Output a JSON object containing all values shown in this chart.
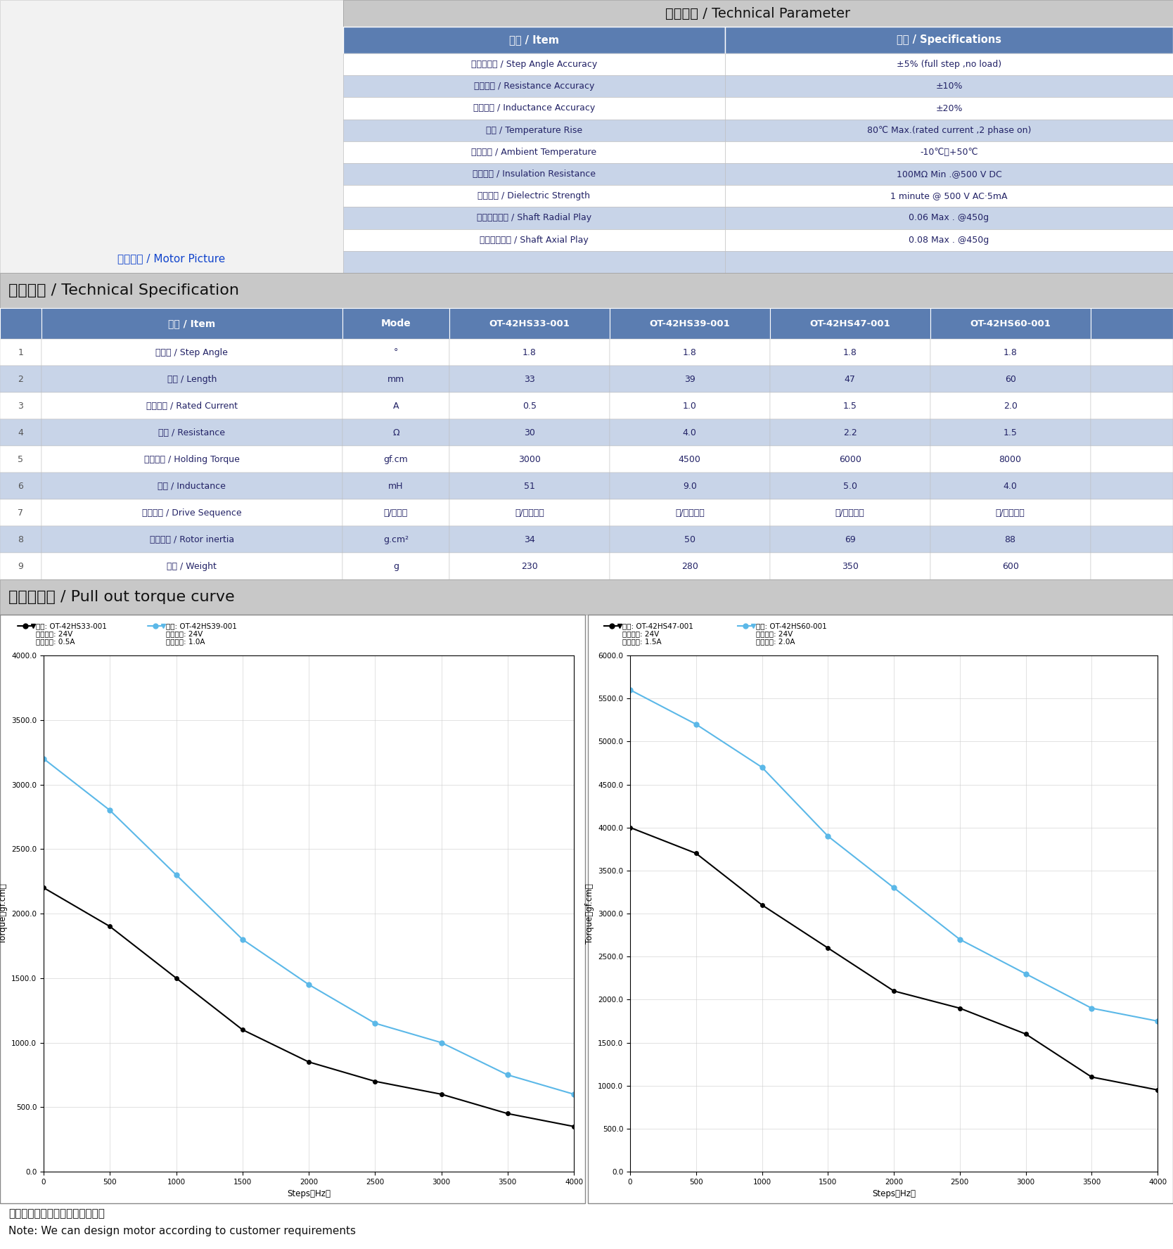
{
  "title_top": "技术参数 / Technical Parameter",
  "tech_param_headers": [
    "项目 / Item",
    "规格 / Specifications"
  ],
  "tech_param_rows": [
    [
      "步距角精度 / Step Angle Accuracy",
      "±5% (full step ,no load)"
    ],
    [
      "电阻精度 / Resistance Accuracy",
      "±10%"
    ],
    [
      "电感精度 / Inductance Accuracy",
      "±20%"
    ],
    [
      "温升 / Temperature Rise",
      "80℃ Max.(rated current ,2 phase on)"
    ],
    [
      "环境温度 / Ambient Temperature",
      "-10℃～+50℃"
    ],
    [
      "绝缘电阻 / Insulation Resistance",
      "100MΩ Min .@500 V DC"
    ],
    [
      "耐压强度 / Dielectric Strength",
      "1 minute @ 500 V AC·5mA"
    ],
    [
      "转轴径向跳动 / Shaft Radial Play",
      "0.06 Max . @450g"
    ],
    [
      "转轴轴向跳动 / Shaft Axial Play",
      "0.08 Max . @450g"
    ],
    [
      "",
      ""
    ]
  ],
  "motor_picture_label": "电机图片 / Motor Picture",
  "tech_spec_title": "技术规格 / Technical Specification",
  "spec_headers": [
    "项目 / Item",
    "Mode",
    "OT-42HS33-001",
    "OT-42HS39-001",
    "OT-42HS47-001",
    "OT-42HS60-001",
    ""
  ],
  "spec_rows": [
    [
      "1",
      "步距角 / Step Angle",
      "°",
      "1.8",
      "1.8",
      "1.8",
      "1.8",
      ""
    ],
    [
      "2",
      "长度 / Length",
      "mm",
      "33",
      "39",
      "47",
      "60",
      ""
    ],
    [
      "3",
      "额定电流 / Rated Current",
      "A",
      "0.5",
      "1.0",
      "1.5",
      "2.0",
      ""
    ],
    [
      "4",
      "电阻 / Resistance",
      "Ω",
      "30",
      "4.0",
      "2.2",
      "1.5",
      ""
    ],
    [
      "5",
      "保持扭矩 / Holding Torque",
      "gf.cm",
      "3000",
      "4500",
      "6000",
      "8000",
      ""
    ],
    [
      "6",
      "电感 / Inductance",
      "mH",
      "51",
      "9.0",
      "5.0",
      "4.0",
      ""
    ],
    [
      "7",
      "驱动方式 / Drive Sequence",
      "单/双极性",
      "单/双极驱动",
      "单/双极驱动",
      "单/双极驱动",
      "单/双极驱动",
      ""
    ],
    [
      "8",
      "转动惯量 / Rotor inertia",
      "g.cm²",
      "34",
      "50",
      "69",
      "88",
      ""
    ],
    [
      "9",
      "重量 / Weight",
      "g",
      "230",
      "280",
      "350",
      "600",
      ""
    ]
  ],
  "torque_title": "矩频特性图 / Pull out torque curve",
  "chart1_black_x": [
    0,
    500,
    1000,
    1500,
    2000,
    2500,
    3000,
    3500,
    4000
  ],
  "chart1_black_y": [
    2200,
    1900,
    1500,
    1100,
    850,
    700,
    600,
    450,
    350
  ],
  "chart1_blue_x": [
    0,
    500,
    1000,
    1500,
    2000,
    2500,
    3000,
    3500,
    4000
  ],
  "chart1_blue_y": [
    3200,
    2800,
    2300,
    1800,
    1450,
    1150,
    1000,
    750,
    600
  ],
  "chart2_black_x": [
    0,
    500,
    1000,
    1500,
    2000,
    2500,
    3000,
    3500,
    4000
  ],
  "chart2_black_y": [
    4000,
    3700,
    3100,
    2600,
    2100,
    1900,
    1600,
    1100,
    950
  ],
  "chart2_blue_x": [
    0,
    500,
    1000,
    1500,
    2000,
    2500,
    3000,
    3500,
    4000
  ],
  "chart2_blue_y": [
    5600,
    5200,
    4700,
    3900,
    3300,
    2700,
    2300,
    1900,
    1750
  ],
  "note1": "注：可根据客户需求进行定制马达",
  "note2": "Note: We can design motor according to customer requirements",
  "header_bg": "#5B7DB1",
  "header_text": "#FFFFFF",
  "row_odd_bg": "#FFFFFF",
  "row_even_bg": "#C8D4E8",
  "section_title_bg": "#C8C8C8",
  "img_area_bg": "#F2F2F2"
}
